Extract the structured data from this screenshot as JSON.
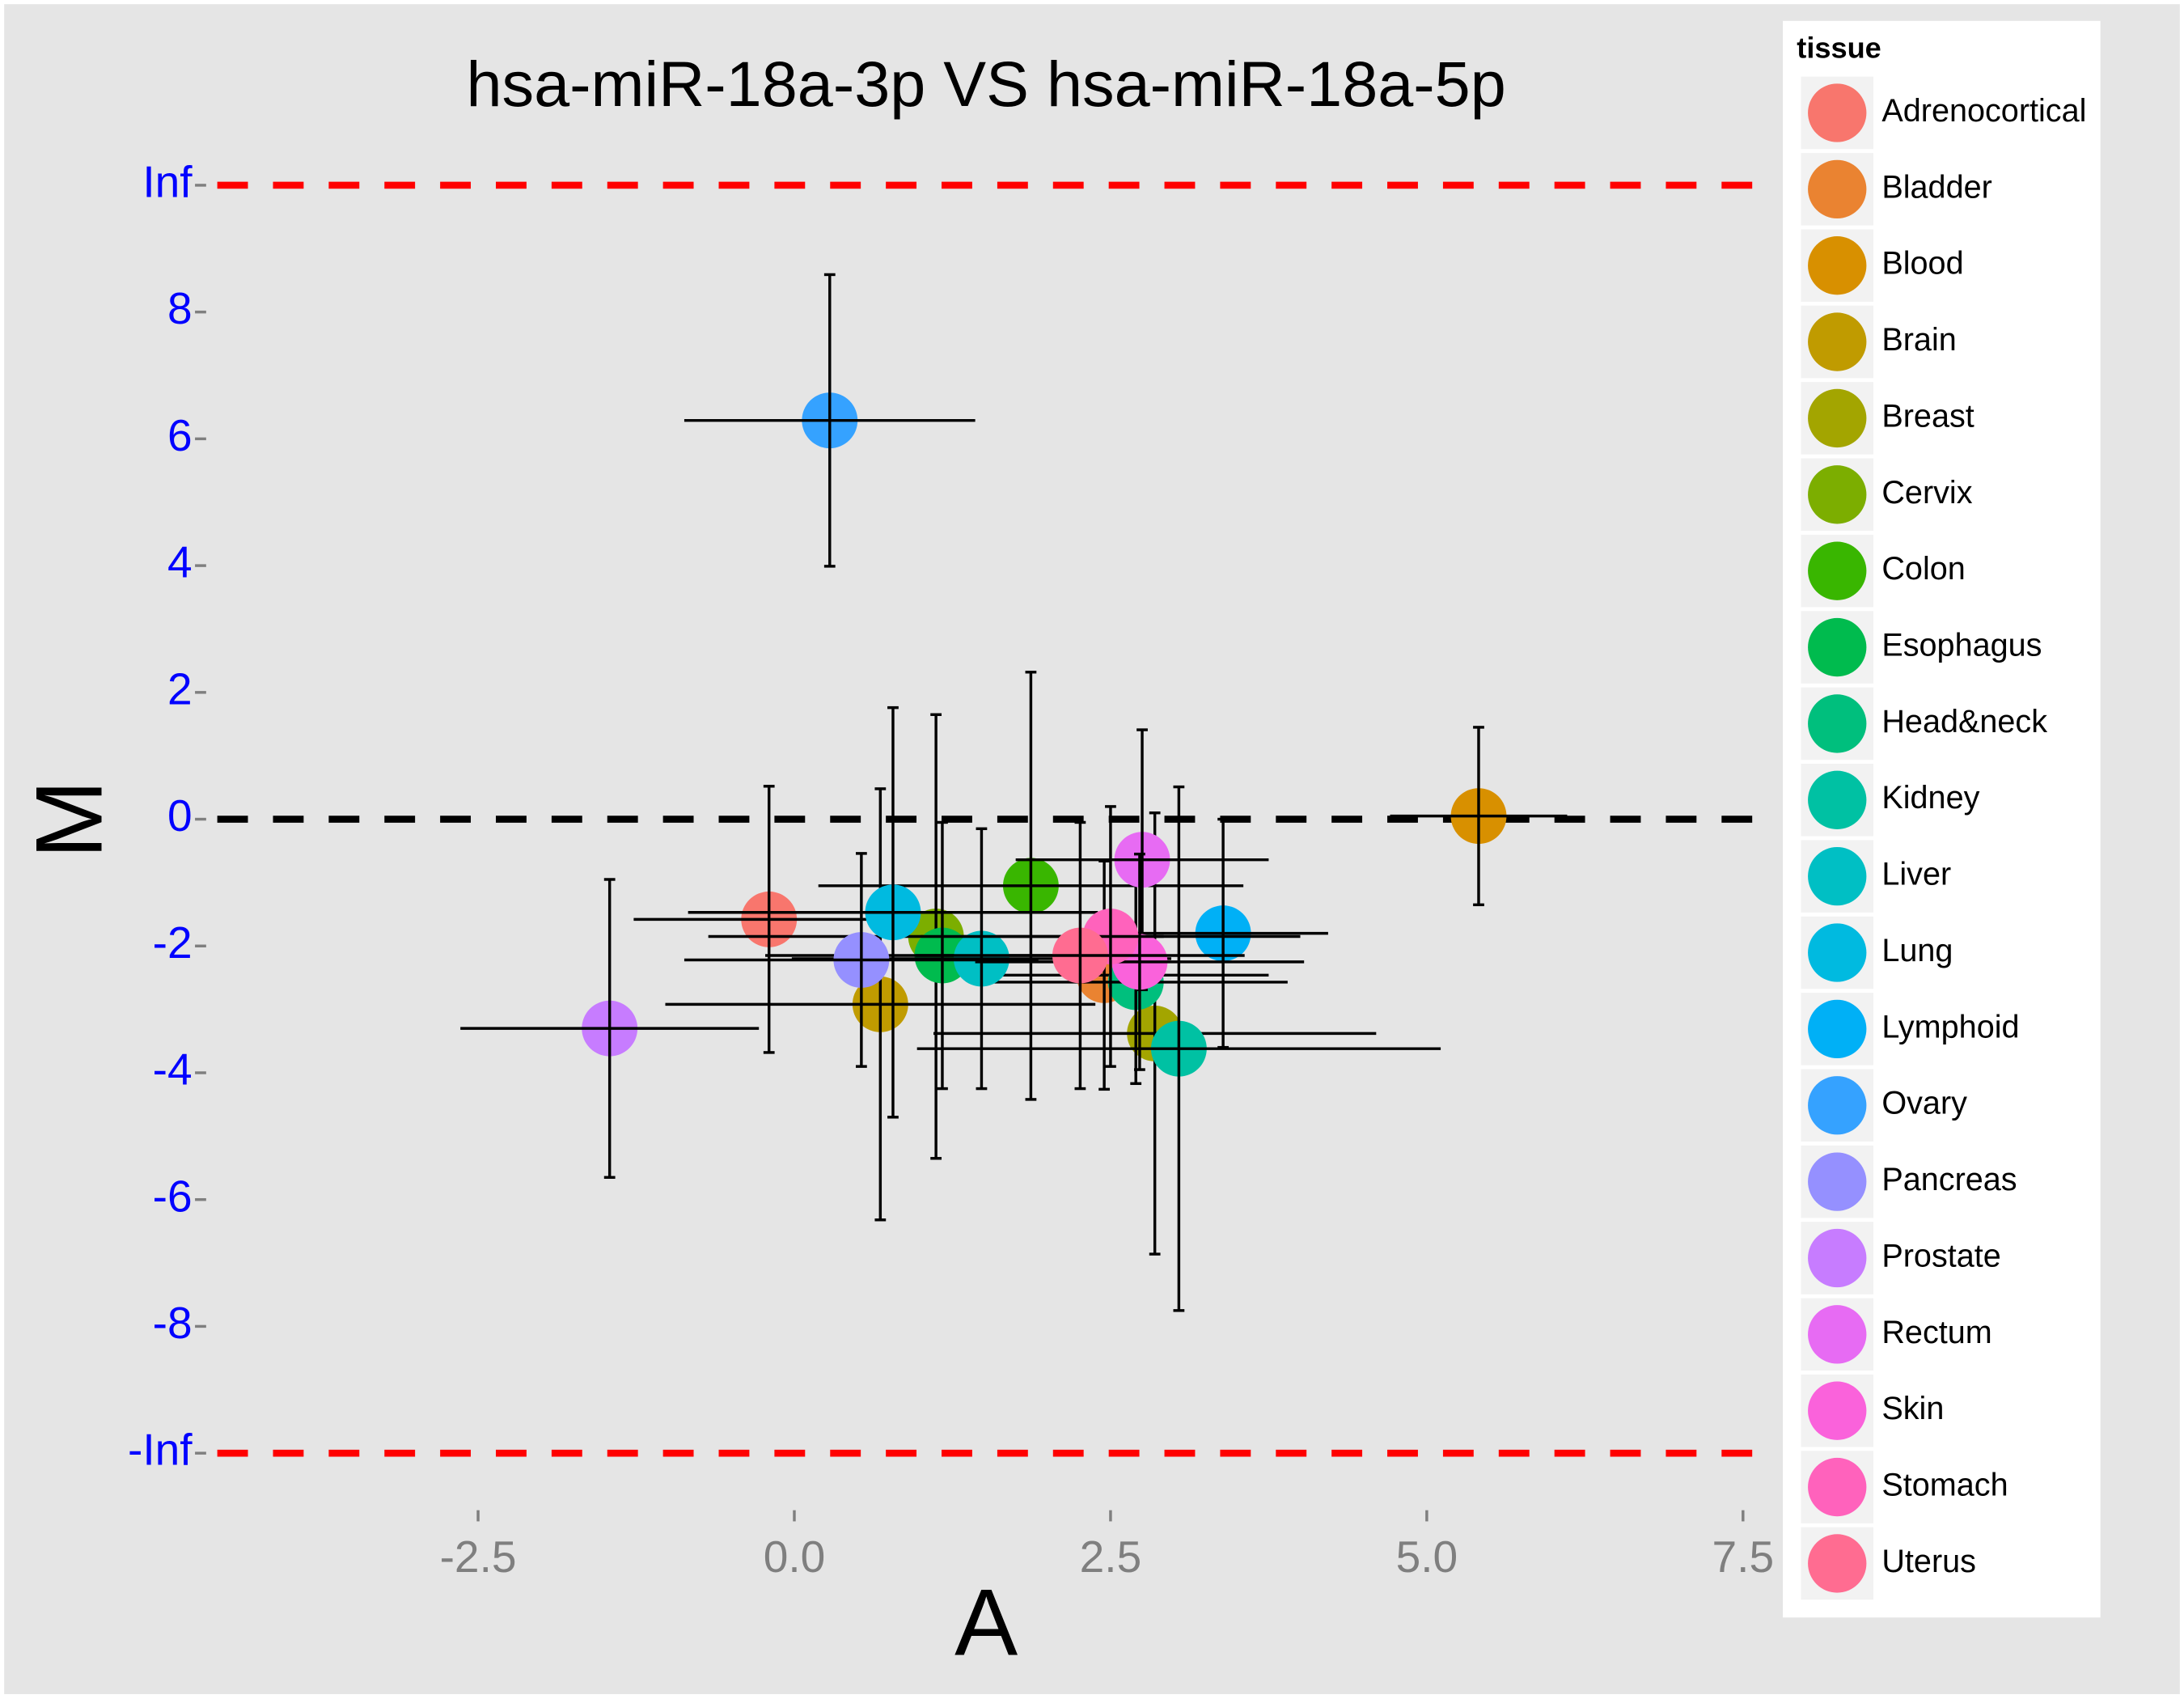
{
  "chart_data": {
    "type": "scatter",
    "title": "hsa-miR-18a-3p VS hsa-miR-18a-5p",
    "x_label": "A",
    "y_label": "M",
    "legend_title": "tissue",
    "legend_position": "right",
    "grid": false,
    "xlim": [
      -4.65,
      7.76
    ],
    "ylim": [
      -10.9,
      10.9
    ],
    "xticks": [
      {
        "value": -2.5,
        "label": "-2.5"
      },
      {
        "value": 0,
        "label": "0.0"
      },
      {
        "value": 2.5,
        "label": "2.5"
      },
      {
        "value": 5,
        "label": "5.0"
      },
      {
        "value": 7.5,
        "label": "7.5"
      }
    ],
    "yticks": [
      {
        "value": -10,
        "label": "-Inf"
      },
      -8,
      -6,
      -4,
      -2,
      0,
      2,
      4,
      6,
      8,
      {
        "value": 10,
        "label": "Inf"
      }
    ],
    "reference_lines": [
      {
        "y": 10,
        "color": "#ff0000"
      },
      {
        "y": 0,
        "color": "#000000"
      },
      {
        "y": -10,
        "color": "#ff0000"
      }
    ],
    "series": [
      {
        "name": "Adrenocortical",
        "color": "#F8766D",
        "x": [
          -0.2
        ],
        "values": [
          -1.58
        ],
        "xerr": [
          1.07
        ],
        "yerr": [
          2.1
        ]
      },
      {
        "name": "Bladder",
        "color": "#EA8331",
        "x": [
          2.45
        ],
        "values": [
          -2.46
        ],
        "xerr": [
          1.3
        ],
        "yerr": [
          1.8
        ]
      },
      {
        "name": "Blood",
        "color": "#D89000",
        "x": [
          5.41
        ],
        "values": [
          0.05
        ],
        "xerr": [
          0.7
        ],
        "yerr": [
          1.4
        ]
      },
      {
        "name": "Brain",
        "color": "#C09B00",
        "x": [
          0.68
        ],
        "values": [
          -2.92
        ],
        "xerr": [
          1.7
        ],
        "yerr": [
          3.4
        ]
      },
      {
        "name": "Breast",
        "color": "#A3A500",
        "x": [
          2.85
        ],
        "values": [
          -3.38
        ],
        "xerr": [
          1.75
        ],
        "yerr": [
          3.48
        ]
      },
      {
        "name": "Cervix",
        "color": "#7CAE00",
        "x": [
          1.12
        ],
        "values": [
          -1.85
        ],
        "xerr": [
          1.8
        ],
        "yerr": [
          3.5
        ]
      },
      {
        "name": "Colon",
        "color": "#39B600",
        "x": [
          1.87
        ],
        "values": [
          -1.05
        ],
        "xerr": [
          1.68
        ],
        "yerr": [
          3.37
        ]
      },
      {
        "name": "Esophagus",
        "color": "#00BB4E",
        "x": [
          1.17
        ],
        "values": [
          -2.15
        ],
        "xerr": [
          1.4
        ],
        "yerr": [
          2.1
        ]
      },
      {
        "name": "Head&neck",
        "color": "#00BF7D",
        "x": [
          2.7
        ],
        "values": [
          -2.57
        ],
        "xerr": [
          1.2
        ],
        "yerr": [
          1.6
        ]
      },
      {
        "name": "Kidney",
        "color": "#00C1A3",
        "x": [
          3.04
        ],
        "values": [
          -3.62
        ],
        "xerr": [
          2.07
        ],
        "yerr": [
          4.13
        ]
      },
      {
        "name": "Liver",
        "color": "#00BFC4",
        "x": [
          1.48
        ],
        "values": [
          -2.2
        ],
        "xerr": [
          1.5
        ],
        "yerr": [
          2.05
        ]
      },
      {
        "name": "Lung",
        "color": "#00BAE0",
        "x": [
          0.78
        ],
        "values": [
          -1.47
        ],
        "xerr": [
          1.62
        ],
        "yerr": [
          3.23
        ]
      },
      {
        "name": "Lymphoid",
        "color": "#00B0F6",
        "x": [
          3.39
        ],
        "values": [
          -1.8
        ],
        "xerr": [
          0.83
        ],
        "yerr": [
          1.8
        ]
      },
      {
        "name": "Ovary",
        "color": "#35A2FF",
        "x": [
          0.28
        ],
        "values": [
          6.29
        ],
        "xerr": [
          1.15
        ],
        "yerr": [
          2.3
        ]
      },
      {
        "name": "Pancreas",
        "color": "#9590FF",
        "x": [
          0.53
        ],
        "values": [
          -2.22
        ],
        "xerr": [
          1.4
        ],
        "yerr": [
          1.68
        ]
      },
      {
        "name": "Prostate",
        "color": "#C77CFF",
        "x": [
          -1.46
        ],
        "values": [
          -3.3
        ],
        "xerr": [
          1.18
        ],
        "yerr": [
          2.35
        ]
      },
      {
        "name": "Rectum",
        "color": "#E76BF3",
        "x": [
          2.75
        ],
        "values": [
          -0.64
        ],
        "xerr": [
          1.0
        ],
        "yerr": [
          2.05
        ]
      },
      {
        "name": "Skin",
        "color": "#FA62DB",
        "x": [
          2.73
        ],
        "values": [
          -2.25
        ],
        "xerr": [
          1.3
        ],
        "yerr": [
          1.7
        ]
      },
      {
        "name": "Stomach",
        "color": "#FF62BC",
        "x": [
          2.5
        ],
        "values": [
          -1.85
        ],
        "xerr": [
          1.5
        ],
        "yerr": [
          2.05
        ]
      },
      {
        "name": "Uterus",
        "color": "#FF6C91",
        "x": [
          2.26
        ],
        "values": [
          -2.15
        ],
        "xerr": [
          1.3
        ],
        "yerr": [
          2.1
        ]
      }
    ]
  }
}
